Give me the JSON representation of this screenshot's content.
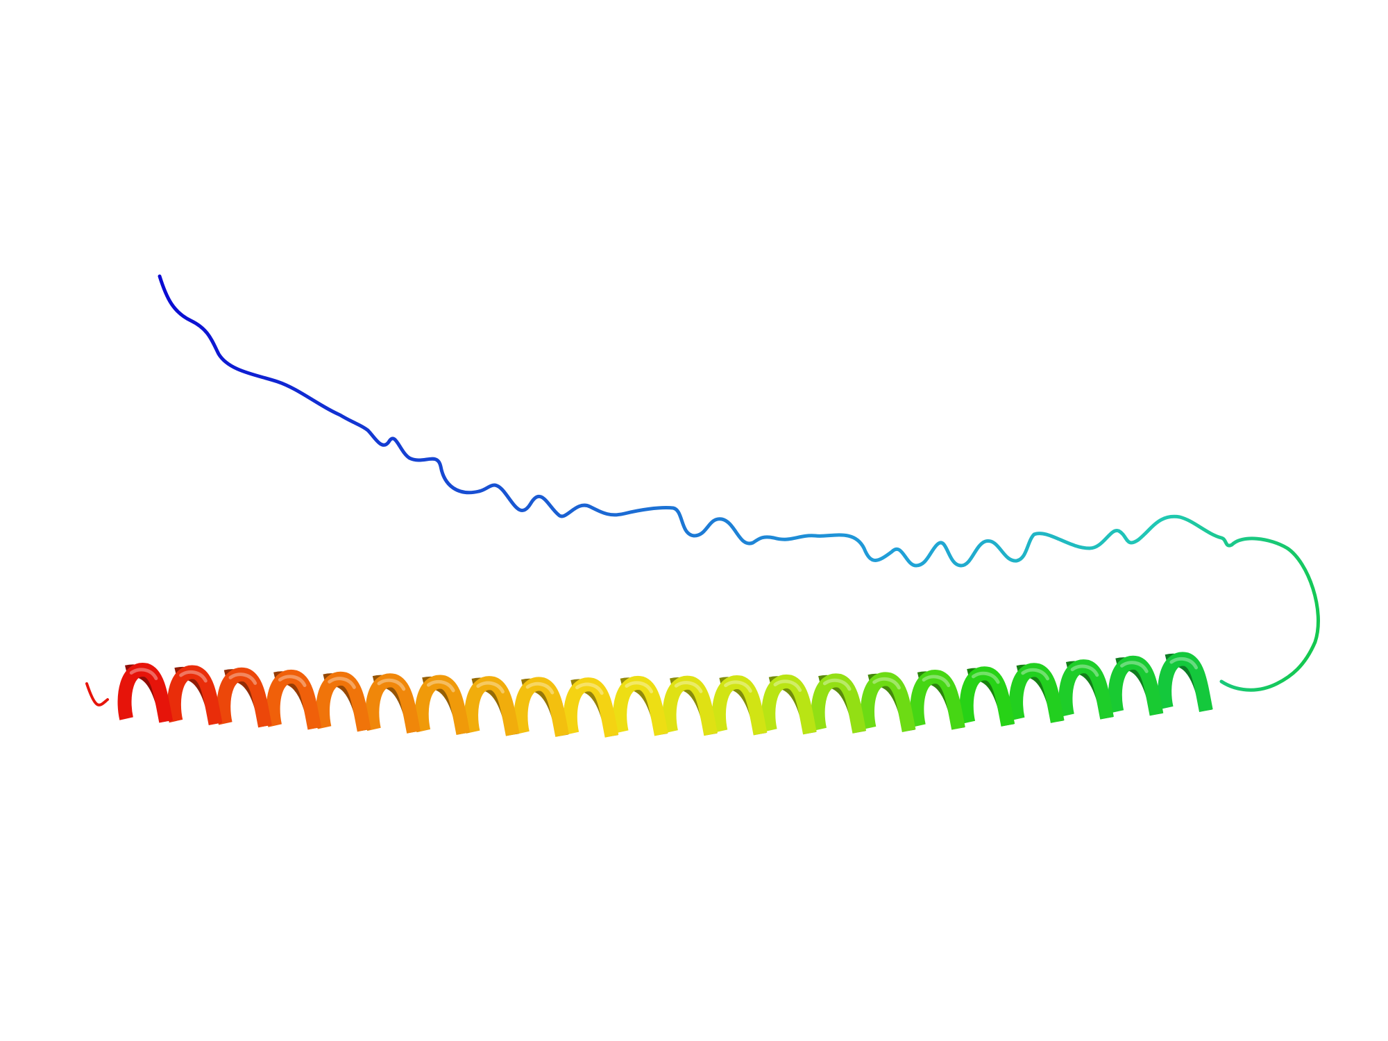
{
  "scene": {
    "background": "#ffffff",
    "subject": "protein-ribbon-cartoon",
    "coloring": "rainbow-n-to-c",
    "colors": {
      "n_terminus": "#0a14c8",
      "blue": "#1a4fd0",
      "cyan": "#1ec8c8",
      "green": "#14c814",
      "yellow": "#f0e614",
      "orange": "#f08c0a",
      "c_terminus": "#e6140a"
    }
  }
}
